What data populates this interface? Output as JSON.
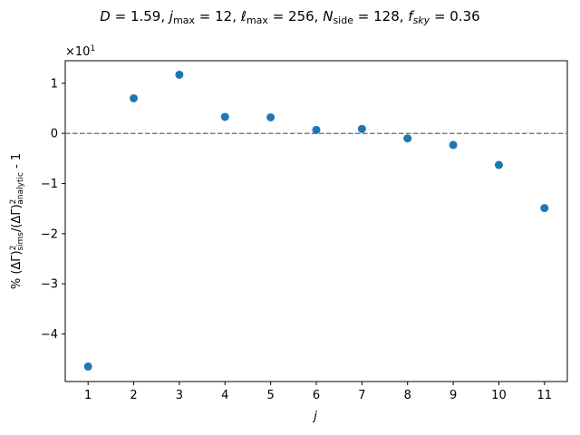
{
  "chart_data": {
    "type": "scatter",
    "title": "D = 1.59,  j_max = 12,  ℓ_max = 256,  N_side = 128,  f_sky = 0.36",
    "xlabel": "j",
    "ylabel": "% (ΔΓ)²_sims/(ΔΓ)²_analytic - 1",
    "y_scale_note": "×10¹",
    "x": [
      1,
      2,
      3,
      4,
      5,
      6,
      7,
      8,
      9,
      10,
      11
    ],
    "y": [
      -4.65,
      0.7,
      1.17,
      0.33,
      0.32,
      0.07,
      0.09,
      -0.1,
      -0.23,
      -0.63,
      -1.49
    ],
    "xlim": [
      0.5,
      11.5
    ],
    "ylim": [
      -4.95,
      1.45
    ],
    "xticks": [
      1,
      2,
      3,
      4,
      5,
      6,
      7,
      8,
      9,
      10,
      11
    ],
    "yticks": [
      -4,
      -3,
      -2,
      -1,
      0,
      1
    ],
    "reference_line": 0,
    "marker_color": "#1f77b4",
    "reference_line_color": "#808080",
    "grid": false,
    "legend": "none"
  }
}
